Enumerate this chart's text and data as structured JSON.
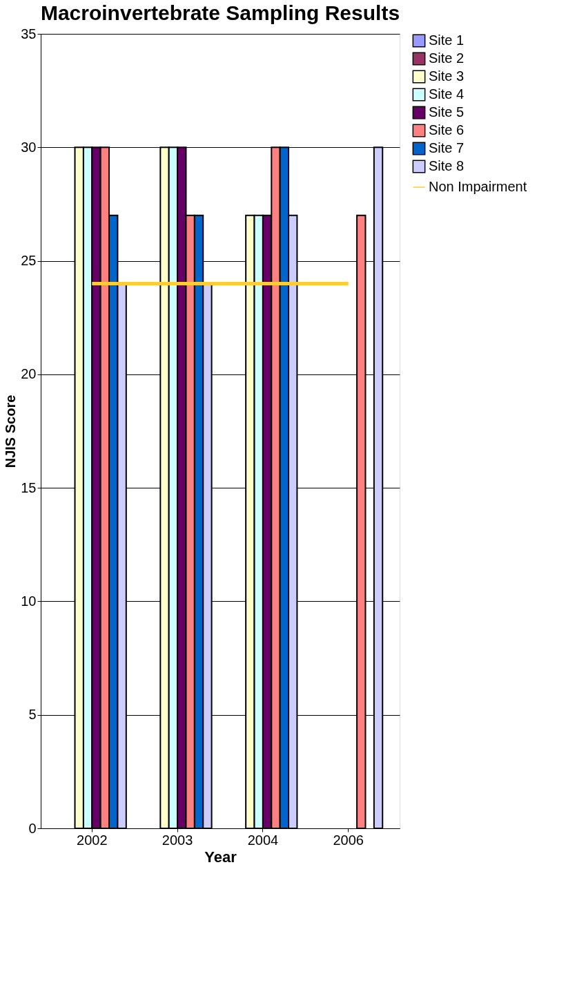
{
  "chart_data": {
    "type": "bar",
    "title": "Macroinvertebrate Sampling Results",
    "xlabel": "Year",
    "ylabel": "NJIS Score",
    "categories": [
      "2002",
      "2003",
      "2004",
      "2006"
    ],
    "series": [
      {
        "name": "Site 1",
        "color": "#9999ff",
        "values": [
          null,
          null,
          null,
          null
        ]
      },
      {
        "name": "Site 2",
        "color": "#993366",
        "values": [
          null,
          null,
          null,
          null
        ]
      },
      {
        "name": "Site 3",
        "color": "#ffffcc",
        "values": [
          30,
          30,
          27,
          null
        ]
      },
      {
        "name": "Site 4",
        "color": "#ccffff",
        "values": [
          30,
          30,
          27,
          null
        ]
      },
      {
        "name": "Site 5",
        "color": "#660066",
        "values": [
          30,
          30,
          27,
          null
        ]
      },
      {
        "name": "Site 6",
        "color": "#ff8080",
        "values": [
          30,
          27,
          30,
          27
        ]
      },
      {
        "name": "Site 7",
        "color": "#0066cc",
        "values": [
          27,
          27,
          30,
          null
        ]
      },
      {
        "name": "Site 8",
        "color": "#ccccff",
        "values": [
          24,
          24,
          27,
          30
        ]
      },
      {
        "name": "Non Impairment",
        "type": "line",
        "color": "#ffcc33",
        "values": [
          24,
          24,
          24,
          24
        ]
      }
    ],
    "ylim": [
      0,
      35
    ],
    "yticks": [
      0,
      5,
      10,
      15,
      20,
      25,
      30,
      35
    ],
    "grid": "y",
    "legend": "right"
  }
}
